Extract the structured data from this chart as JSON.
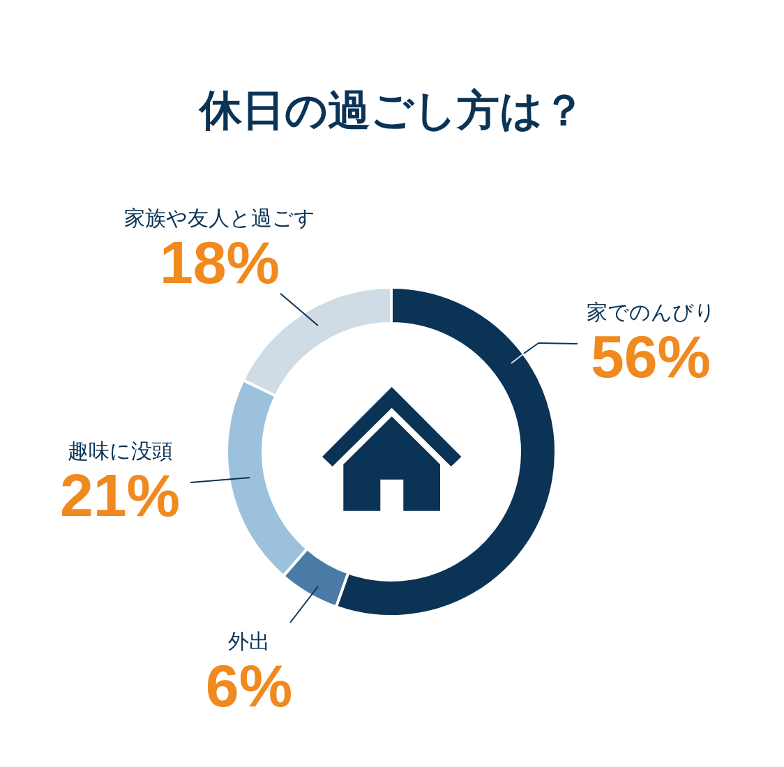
{
  "chart_data": {
    "type": "donut",
    "title": "休日の過ごし方は？",
    "categories": [
      "家でのんびり",
      "外出",
      "趣味に没頭",
      "家族や友人と過ごす"
    ],
    "values": [
      56,
      6,
      21,
      18
    ],
    "colors": [
      "#0a3356",
      "#4a7ba6",
      "#9bc1dc",
      "#cfdce5"
    ],
    "value_labels": [
      "56%",
      "6%",
      "21%",
      "18%"
    ]
  }
}
